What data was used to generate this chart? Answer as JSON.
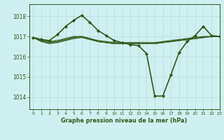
{
  "title": "Graphe pression niveau de la mer (hPa)",
  "bg_color": "#cff0f0",
  "grid_color": "#b8e0e0",
  "line_color": "#2d5a1b",
  "xlim": [
    -0.5,
    23
  ],
  "ylim": [
    1013.4,
    1018.6
  ],
  "yticks": [
    1014,
    1015,
    1016,
    1017,
    1018
  ],
  "xticks": [
    0,
    1,
    2,
    3,
    4,
    5,
    6,
    7,
    8,
    9,
    10,
    11,
    12,
    13,
    14,
    15,
    16,
    17,
    18,
    19,
    20,
    21,
    22,
    23
  ],
  "series": [
    {
      "x": [
        0,
        1,
        2,
        3,
        4,
        5,
        6,
        7,
        8,
        9,
        10,
        11,
        12,
        13,
        14,
        15,
        16,
        17,
        18,
        19,
        20,
        21,
        22,
        23
      ],
      "y": [
        1016.95,
        1016.85,
        1016.75,
        1016.8,
        1016.9,
        1017.0,
        1017.0,
        1016.9,
        1016.8,
        1016.75,
        1016.7,
        1016.7,
        1016.7,
        1016.7,
        1016.7,
        1016.7,
        1016.75,
        1016.8,
        1016.85,
        1016.9,
        1016.95,
        1017.0,
        1017.0,
        1017.0
      ],
      "marker": null,
      "linewidth": 0.9
    },
    {
      "x": [
        0,
        1,
        2,
        3,
        4,
        5,
        6,
        7,
        8,
        9,
        10,
        11,
        12,
        13,
        14,
        15,
        16,
        17,
        18,
        19,
        20,
        21,
        22,
        23
      ],
      "y": [
        1016.95,
        1016.75,
        1016.65,
        1016.7,
        1016.8,
        1016.9,
        1016.95,
        1016.85,
        1016.75,
        1016.7,
        1016.65,
        1016.65,
        1016.65,
        1016.65,
        1016.65,
        1016.65,
        1016.7,
        1016.75,
        1016.8,
        1016.85,
        1016.9,
        1016.95,
        1017.0,
        1017.0
      ],
      "marker": null,
      "linewidth": 0.9
    },
    {
      "x": [
        0,
        1,
        2,
        3,
        4,
        5,
        6,
        7,
        8,
        9,
        10,
        11,
        12,
        13,
        14,
        15,
        16,
        17,
        18,
        19,
        20,
        21,
        22,
        23
      ],
      "y": [
        1016.95,
        1016.8,
        1016.7,
        1016.75,
        1016.85,
        1016.95,
        1017.0,
        1016.9,
        1016.75,
        1016.7,
        1016.65,
        1016.65,
        1016.65,
        1016.65,
        1016.65,
        1016.65,
        1016.7,
        1016.75,
        1016.8,
        1016.85,
        1016.9,
        1016.95,
        1017.0,
        1017.0
      ],
      "marker": null,
      "linewidth": 0.9
    },
    {
      "x": [
        0,
        1,
        2,
        3,
        4,
        5,
        6,
        7,
        8,
        9,
        10,
        11,
        12,
        13,
        14,
        15,
        16,
        17,
        18,
        19,
        20,
        21,
        22,
        23
      ],
      "y": [
        1016.95,
        1016.85,
        1016.8,
        1017.1,
        1017.5,
        1017.8,
        1018.05,
        1017.7,
        1017.3,
        1017.05,
        1016.8,
        1016.7,
        1016.6,
        1016.55,
        1016.15,
        1014.05,
        1014.05,
        1015.1,
        1016.2,
        1016.75,
        1017.05,
        1017.5,
        1017.05,
        1017.0
      ],
      "marker": "D",
      "linewidth": 1.2
    }
  ]
}
